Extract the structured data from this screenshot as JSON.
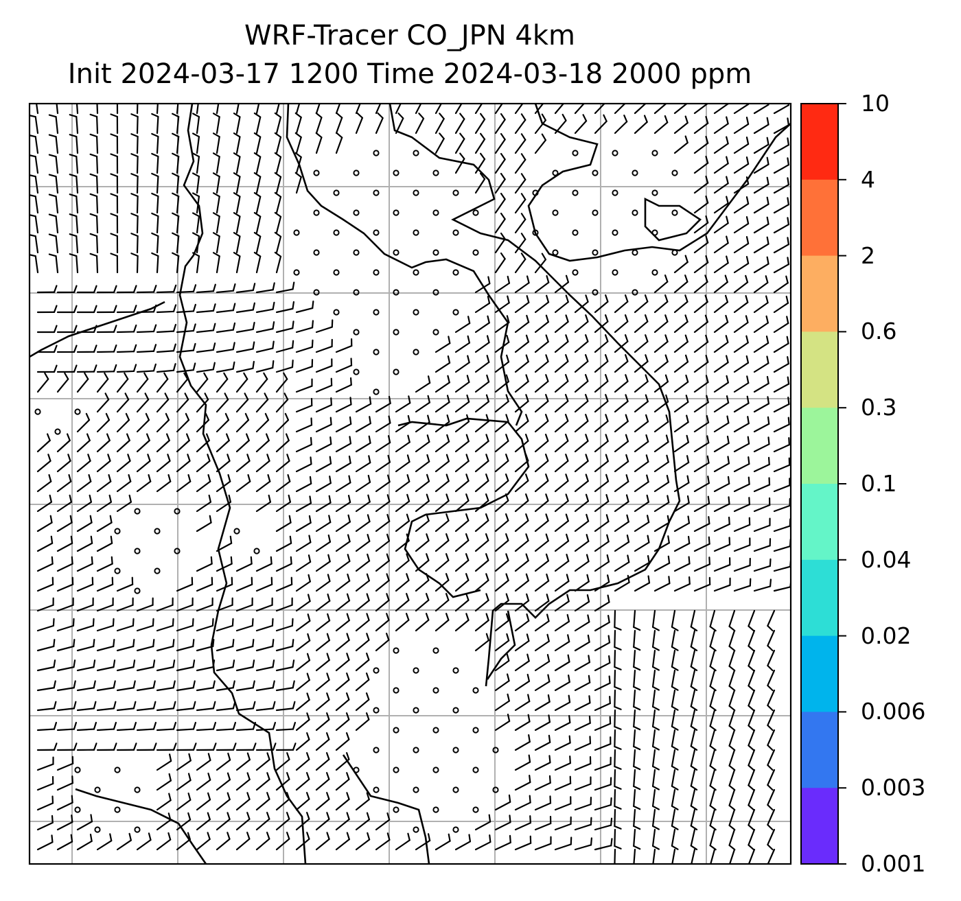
{
  "title": {
    "line1": "WRF-Tracer CO_JPN 4km",
    "line2": "Init 2024-03-17 1200 Time 2024-03-18 2000 ppm"
  },
  "colorbar": {
    "ticks": [
      "10",
      "4",
      "2",
      "0.6",
      "0.3",
      "0.1",
      "0.04",
      "0.02",
      "0.006",
      "0.003",
      "0.001"
    ],
    "colors_top_to_bottom": [
      "#ff2a12",
      "#ff7138",
      "#fdae61",
      "#d4e383",
      "#9cf59b",
      "#64f5c8",
      "#2dded6",
      "#00b4ec",
      "#3377f0",
      "#6a2cfc"
    ]
  },
  "colors": {
    "gridline": "#b0b0b0",
    "barb": "#000000",
    "coastline": "#000000"
  },
  "map": {
    "wind_field": "wind barbs with calm circles",
    "coastline": "coastline"
  }
}
